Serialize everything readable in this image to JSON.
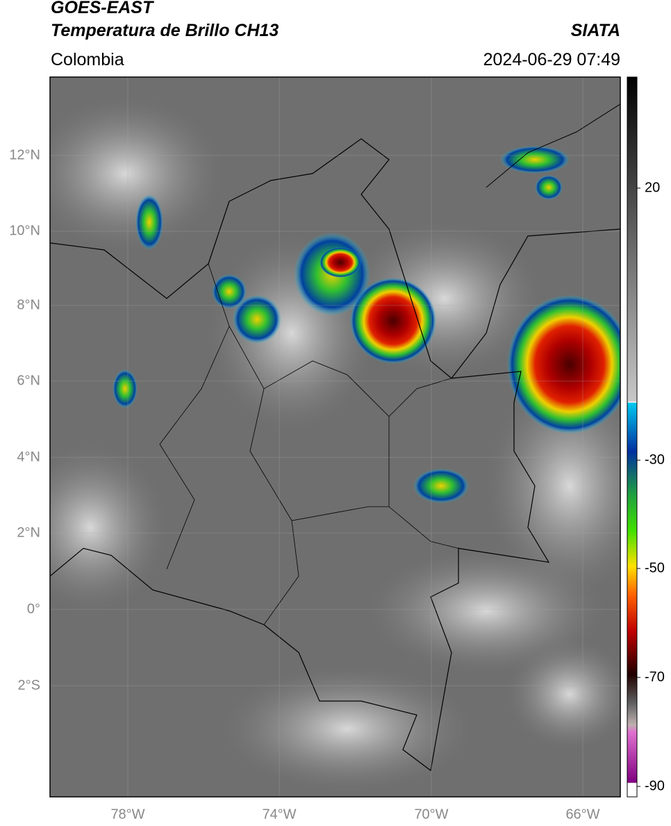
{
  "header": {
    "satellite": "GOES-EAST",
    "product": "Temperatura de Brillo CH13",
    "region": "Colombia",
    "source": "SIATA",
    "timestamp": "2024-06-29 07:49"
  },
  "map": {
    "lat_labels": [
      "12°N",
      "10°N",
      "8°N",
      "6°N",
      "4°N",
      "2°N",
      "0°",
      "2°S"
    ],
    "lon_labels": [
      "78°W",
      "74°W",
      "70°W",
      "66°W"
    ]
  },
  "colorbar": {
    "tick_labels": [
      "20",
      "-30",
      "-50",
      "-70",
      "-90"
    ]
  }
}
